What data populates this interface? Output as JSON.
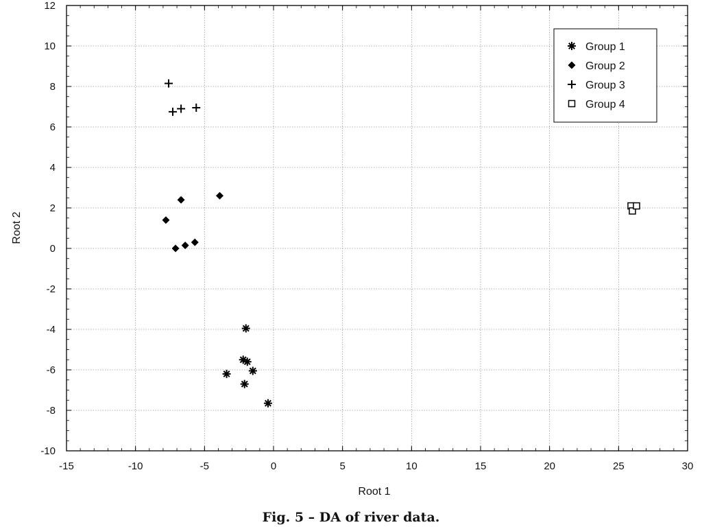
{
  "caption": "Fig. 5 – DA of river data.",
  "chart_data": {
    "type": "scatter",
    "title": "",
    "xlabel": "Root 1",
    "ylabel": "Root 2",
    "xlim": [
      -15,
      30
    ],
    "ylim": [
      -10,
      12
    ],
    "xticks": [
      -15,
      -10,
      -5,
      0,
      5,
      10,
      15,
      20,
      25,
      30
    ],
    "yticks": [
      -10,
      -8,
      -6,
      -4,
      -2,
      0,
      2,
      4,
      6,
      8,
      10,
      12
    ],
    "xtick_labels": [
      "-15",
      "-10",
      "-5",
      "0",
      "5",
      "10",
      "15",
      "20",
      "25",
      "30"
    ],
    "ytick_labels": [
      "-10",
      "-8",
      "-6",
      "-4",
      "-2",
      "0",
      "2",
      "4",
      "6",
      "8",
      "10",
      "12"
    ],
    "grid": true,
    "legend_position": "top-right",
    "series": [
      {
        "name": "Group 1",
        "marker": "asterisk",
        "points": [
          [
            -2.0,
            -3.95
          ],
          [
            -2.2,
            -5.5
          ],
          [
            -1.9,
            -5.6
          ],
          [
            -1.5,
            -6.05
          ],
          [
            -3.4,
            -6.2
          ],
          [
            -2.1,
            -6.7
          ],
          [
            -0.4,
            -7.65
          ]
        ]
      },
      {
        "name": "Group 2",
        "marker": "diamond",
        "points": [
          [
            -3.9,
            2.6
          ],
          [
            -6.7,
            2.4
          ],
          [
            -7.8,
            1.4
          ],
          [
            -7.1,
            -0.0
          ],
          [
            -6.4,
            0.15
          ],
          [
            -5.7,
            0.3
          ]
        ]
      },
      {
        "name": "Group 3",
        "marker": "plus",
        "points": [
          [
            -7.6,
            8.15
          ],
          [
            -7.3,
            6.75
          ],
          [
            -6.7,
            6.9
          ],
          [
            -5.6,
            6.95
          ]
        ]
      },
      {
        "name": "Group 4",
        "marker": "square-open",
        "points": [
          [
            25.9,
            2.1
          ],
          [
            26.0,
            1.85
          ],
          [
            26.3,
            2.1
          ]
        ]
      }
    ]
  }
}
